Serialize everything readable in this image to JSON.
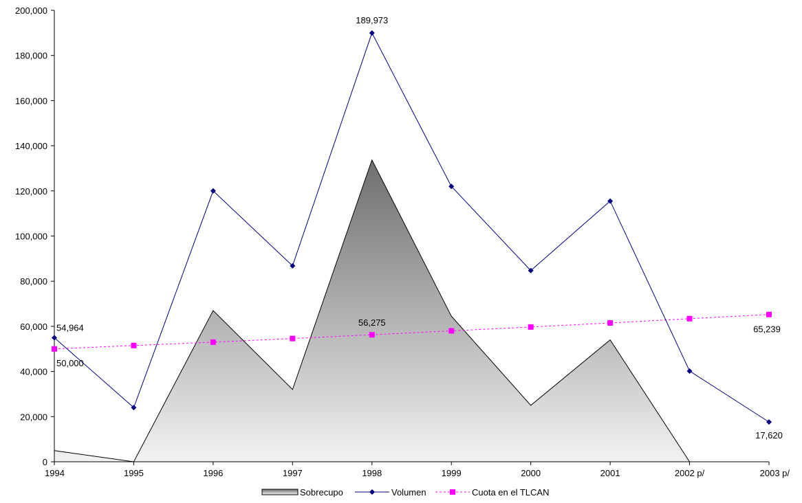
{
  "chart_data": {
    "type": "line",
    "title": "",
    "xlabel": "",
    "ylabel": "",
    "categories": [
      "1994",
      "1995",
      "1996",
      "1997",
      "1998",
      "1999",
      "2000",
      "2001",
      "2002 p/",
      "2003 p/"
    ],
    "ylim": [
      0,
      200000
    ],
    "yticks": [
      0,
      20000,
      40000,
      60000,
      80000,
      100000,
      120000,
      140000,
      160000,
      180000,
      200000
    ],
    "ytick_labels": [
      "0",
      "20,000",
      "40,000",
      "60,000",
      "80,000",
      "100,000",
      "120,000",
      "140,000",
      "160,000",
      "180,000",
      "200,000"
    ],
    "grid": false,
    "legend_position": "bottom",
    "series": [
      {
        "name": "Sobrecupo",
        "type": "area",
        "values": [
          4964,
          0,
          67000,
          32000,
          133700,
          64500,
          25000,
          54000,
          0,
          0
        ],
        "color": "#808080"
      },
      {
        "name": "Volumen",
        "type": "line",
        "values": [
          54964,
          24000,
          120000,
          86800,
          189973,
          122000,
          84700,
          115500,
          40200,
          17620
        ],
        "color": "#000080"
      },
      {
        "name": "Cuota en el TLCAN",
        "type": "line",
        "values": [
          50000,
          51500,
          53000,
          54600,
          56275,
          58000,
          59700,
          61500,
          63400,
          65239
        ],
        "color": "#ff00ff"
      }
    ],
    "data_labels": [
      {
        "series": 1,
        "index": 0,
        "text": "54,964"
      },
      {
        "series": 1,
        "index": 4,
        "text": "189,973"
      },
      {
        "series": 1,
        "index": 9,
        "text": "17,620"
      },
      {
        "series": 2,
        "index": 0,
        "text": "50,000"
      },
      {
        "series": 2,
        "index": 4,
        "text": "56,275"
      },
      {
        "series": 2,
        "index": 9,
        "text": "65,239"
      }
    ]
  }
}
